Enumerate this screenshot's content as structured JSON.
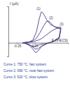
{
  "chart_data": {
    "type": "line",
    "x_label": "E (V/ECS)",
    "y_label": "I (µA)",
    "xlim": [
      -0.5,
      1.2
    ],
    "xticks": [
      -0.25,
      0.25
    ],
    "ylim": [
      -1.5,
      4
    ],
    "yticks": [],
    "tick_labels": "x",
    "series": [
      {
        "name": "Curve 1: 750 °C, fast system",
        "color": "#4b3f8c",
        "x": [
          -0.1,
          0,
          0.1,
          0.2,
          0.3,
          0.38,
          0.44,
          0.5,
          0.6,
          0.7,
          0.8,
          0.9,
          1.0,
          0.95,
          0.8,
          0.6,
          0.45,
          0.35,
          0.28,
          0.2,
          0.1,
          0,
          -0.1
        ],
        "values": [
          0,
          0.05,
          0.1,
          0.3,
          1.2,
          2.6,
          3.4,
          3.2,
          2.5,
          2.0,
          1.8,
          1.7,
          1.7,
          0.6,
          0.2,
          -0.1,
          -0.4,
          -0.9,
          -1.1,
          -0.7,
          -0.3,
          -0.1,
          0
        ]
      },
      {
        "name": "Curve 2: 690 °C, near-fast system",
        "color": "#4b3f8c",
        "x": [
          -0.1,
          0,
          0.1,
          0.2,
          0.3,
          0.4,
          0.5,
          0.58,
          0.64,
          0.7,
          0.8,
          0.9,
          1.0,
          0.95,
          0.8,
          0.6,
          0.45,
          0.35,
          0.28,
          0.2,
          0.1,
          0,
          -0.1
        ],
        "values": [
          0,
          0.03,
          0.08,
          0.2,
          0.5,
          1.1,
          1.8,
          2.3,
          2.4,
          2.2,
          1.8,
          1.6,
          1.5,
          0.5,
          0.15,
          -0.1,
          -0.35,
          -0.65,
          -0.7,
          -0.5,
          -0.2,
          -0.05,
          0
        ]
      },
      {
        "name": "Curve 3: 520 °C, slow system",
        "color": "#4b3f8c",
        "x": [
          -0.1,
          0,
          0.2,
          0.4,
          0.5,
          0.6,
          0.7,
          0.8,
          0.9,
          0.96,
          1.0,
          0.95,
          0.8,
          0.6,
          0.4,
          0.3,
          0.2,
          0.1,
          0,
          -0.1
        ],
        "values": [
          0,
          0.02,
          0.1,
          0.35,
          0.6,
          0.9,
          1.2,
          1.45,
          1.6,
          1.6,
          1.55,
          0.5,
          0.15,
          -0.05,
          -0.2,
          -0.35,
          -0.4,
          -0.25,
          -0.08,
          0
        ]
      }
    ],
    "annotations": [
      {
        "text": "(1)",
        "x": 0.36,
        "y": 3.6
      },
      {
        "text": "(2)",
        "x": 0.72,
        "y": 2.6
      },
      {
        "text": "(3)",
        "x": 1.02,
        "y": 1.9
      }
    ]
  }
}
